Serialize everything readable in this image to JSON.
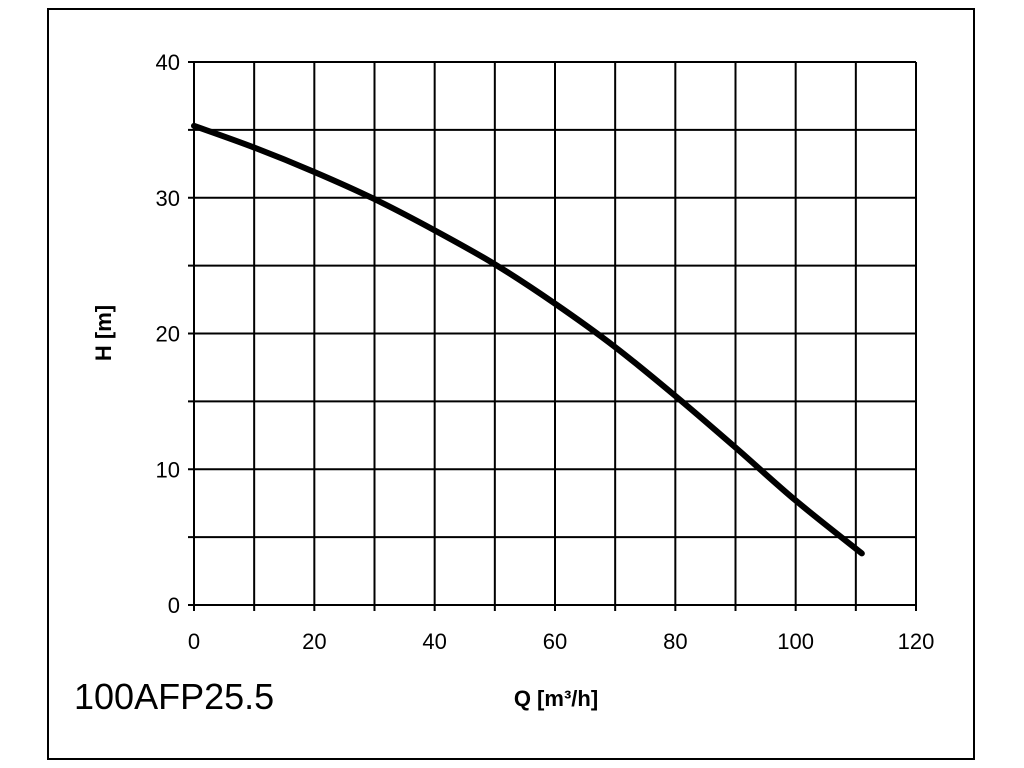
{
  "model": "100AFP25.5",
  "chart_data": {
    "type": "line",
    "xlabel": "Q [m³/h]",
    "ylabel": "H [m]",
    "xlim": [
      0,
      120
    ],
    "ylim": [
      0,
      40
    ],
    "x_ticks": [
      0,
      20,
      40,
      60,
      80,
      100,
      120
    ],
    "y_ticks": [
      0,
      10,
      20,
      30,
      40
    ],
    "x_grid_step": 10,
    "y_grid_step": 5,
    "grid": true,
    "series": [
      {
        "x": [
          0,
          10,
          20,
          30,
          40,
          50,
          60,
          70,
          80,
          90,
          100,
          111
        ],
        "y": [
          35.3,
          33.7,
          31.9,
          29.9,
          27.6,
          25.1,
          22.2,
          19.0,
          15.4,
          11.6,
          7.7,
          3.8
        ]
      }
    ]
  }
}
